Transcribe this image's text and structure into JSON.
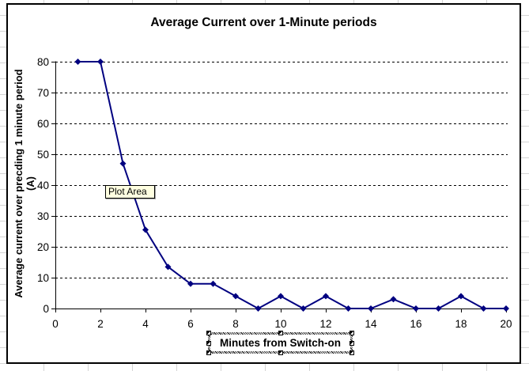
{
  "chart": {
    "title": "Average Current over 1-Minute periods",
    "tooltip": "Plot Area",
    "x_axis_title": "Minutes from Switch-on",
    "y_axis_title_line1": "Average current over precding 1 minute period",
    "y_axis_title_line2": "(A)"
  },
  "chart_data": {
    "type": "line",
    "title": "Average Current over 1-Minute periods",
    "xlabel": "Minutes from Switch-on",
    "ylabel": "Average current over precding 1 minute period (A)",
    "x": [
      1,
      2,
      3,
      4,
      5,
      6,
      7,
      8,
      9,
      10,
      11,
      12,
      13,
      14,
      15,
      16,
      17,
      18,
      19,
      20
    ],
    "values": [
      80,
      80,
      47,
      25.5,
      13.5,
      8,
      8,
      4,
      0,
      4,
      0,
      4,
      0,
      0,
      3,
      0,
      0,
      4,
      0,
      0
    ],
    "xlim": [
      0,
      20
    ],
    "ylim": [
      0,
      80
    ],
    "x_ticks": [
      0,
      2,
      4,
      6,
      8,
      10,
      12,
      14,
      16,
      18,
      20
    ],
    "y_ticks": [
      0,
      10,
      20,
      30,
      40,
      50,
      60,
      70,
      80
    ],
    "series_color": "#000080",
    "marker": "diamond",
    "gridlines": "horizontal-dashed-black",
    "legend": "none"
  }
}
